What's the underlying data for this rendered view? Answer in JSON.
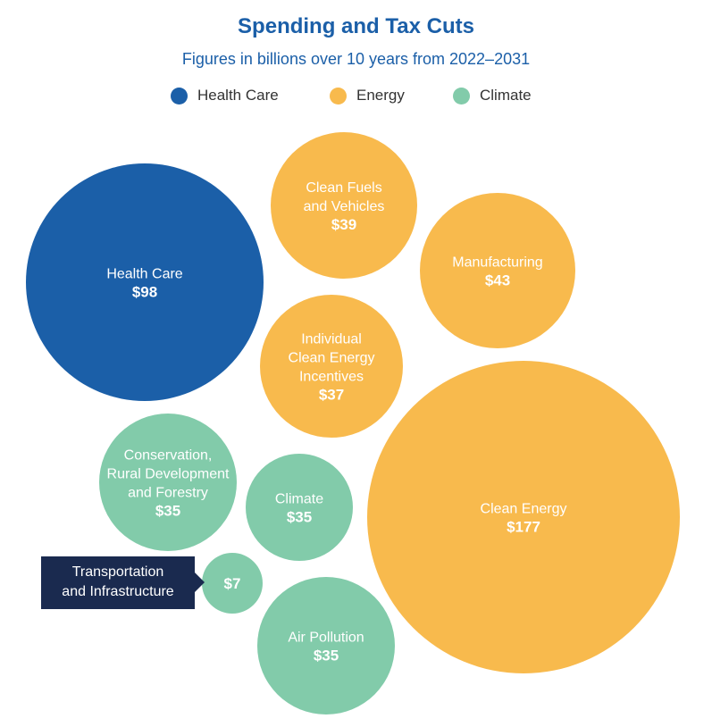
{
  "chart_data": {
    "type": "bubble",
    "title": "Spending and Tax Cuts",
    "subtitle": "Figures in billions over 10 years from 2022–2031",
    "legend": [
      {
        "name": "Health Care",
        "color": "#1b5fa8"
      },
      {
        "name": "Energy",
        "color": "#f8ba4d"
      },
      {
        "name": "Climate",
        "color": "#82cbaa"
      }
    ],
    "legend_placement": "top-center",
    "bubbles": [
      {
        "label_lines": [
          "Health Care"
        ],
        "value_label": "$98",
        "value": 98,
        "category": "Health Care"
      },
      {
        "label_lines": [
          "Clean Fuels",
          "and Vehicles"
        ],
        "value_label": "$39",
        "value": 39,
        "category": "Energy"
      },
      {
        "label_lines": [
          "Manufacturing"
        ],
        "value_label": "$43",
        "value": 43,
        "category": "Energy"
      },
      {
        "label_lines": [
          "Individual",
          "Clean Energy",
          "Incentives"
        ],
        "value_label": "$37",
        "value": 37,
        "category": "Energy"
      },
      {
        "label_lines": [
          "Clean Energy"
        ],
        "value_label": "$177",
        "value": 177,
        "category": "Energy"
      },
      {
        "label_lines": [
          "Conservation,",
          "Rural Development",
          "and Forestry"
        ],
        "value_label": "$35",
        "value": 35,
        "category": "Climate"
      },
      {
        "label_lines": [
          "Climate"
        ],
        "value_label": "$35",
        "value": 35,
        "category": "Climate"
      },
      {
        "label_lines": [],
        "value_label": "$7",
        "value": 7,
        "category": "Climate"
      },
      {
        "label_lines": [
          "Air Pollution"
        ],
        "value_label": "$35",
        "value": 35,
        "category": "Climate"
      }
    ],
    "callout": {
      "lines": [
        "Transportation",
        "and Infrastructure"
      ],
      "target_value_label": "$7"
    }
  }
}
